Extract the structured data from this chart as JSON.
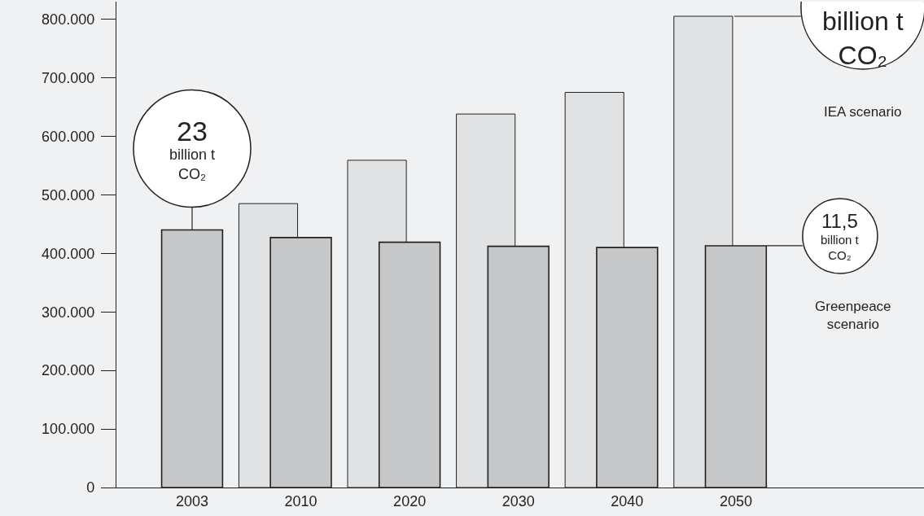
{
  "chart_data": {
    "type": "bar",
    "categories": [
      "2003",
      "2010",
      "2020",
      "2030",
      "2040",
      "2050"
    ],
    "series": [
      {
        "name": "IEA scenario",
        "color": "#e1e2e4",
        "values": [
          null,
          485000,
          559000,
          638000,
          675000,
          805000
        ]
      },
      {
        "name": "Greenpeace scenario",
        "color": "#c6c7c9",
        "values": [
          440000,
          427000,
          419000,
          412000,
          410000,
          413000
        ]
      }
    ],
    "ylim": [
      0,
      830000
    ],
    "yticks": [
      {
        "value": 0,
        "label": "0"
      },
      {
        "value": 100000,
        "label": "100.000"
      },
      {
        "value": 200000,
        "label": "200.000"
      },
      {
        "value": 300000,
        "label": "300.000"
      },
      {
        "value": 400000,
        "label": "400.000"
      },
      {
        "value": 500000,
        "label": "500.000"
      },
      {
        "value": 600000,
        "label": "600.000"
      },
      {
        "value": 700000,
        "label": "700.000"
      },
      {
        "value": 800000,
        "label": "800.000"
      }
    ],
    "annotations": [
      "23 billion t CO₂",
      "billion t CO₂",
      "11,5 billion t CO₂"
    ]
  }
}
